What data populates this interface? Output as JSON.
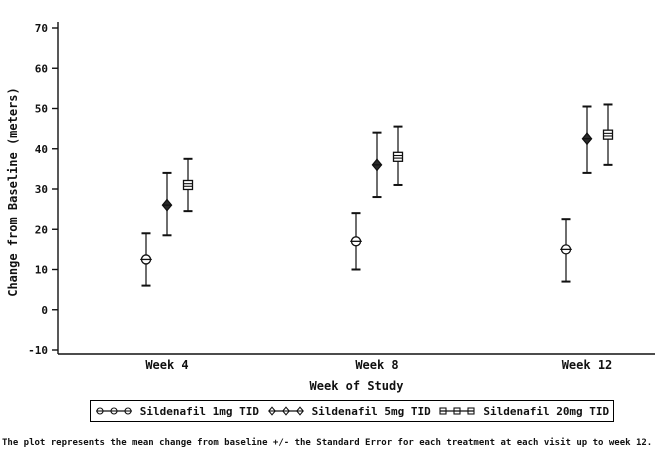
{
  "figure": {
    "caption": "The plot represents the mean change from baseline +/- the Standard Error for each treatment at each visit up to week 12.",
    "background": "#ffffff",
    "axis_color": "#111111",
    "errorbar_line_color": "#555555",
    "errorbar_cap_color": "#111111"
  },
  "chart_data": {
    "type": "scatter",
    "title": "",
    "xlabel": "Week of Study",
    "ylabel": "Change from Baseline (meters)",
    "categories": [
      "Week 4",
      "Week 8",
      "Week 12"
    ],
    "y_ticks": [
      70,
      60,
      50,
      40,
      30,
      20,
      10,
      0,
      -10
    ],
    "ylim": [
      -10,
      70
    ],
    "grid": false,
    "legend_position": "bottom",
    "error_type": "standard_error",
    "series": [
      {
        "name": "Sildenafil 1mg TID",
        "marker": "circle",
        "means": [
          12.5,
          17,
          15
        ],
        "lower": [
          6,
          10,
          7
        ],
        "upper": [
          19,
          24,
          22.5
        ]
      },
      {
        "name": "Sildenafil 5mg TID",
        "marker": "diamond",
        "means": [
          26,
          36,
          42.5
        ],
        "lower": [
          18.5,
          28,
          34
        ],
        "upper": [
          34,
          44,
          50.5
        ]
      },
      {
        "name": "Sildenafil 20mg TID",
        "marker": "square",
        "means": [
          31,
          38,
          43.5
        ],
        "lower": [
          24.5,
          31,
          36
        ],
        "upper": [
          37.5,
          45.5,
          51
        ]
      }
    ]
  }
}
